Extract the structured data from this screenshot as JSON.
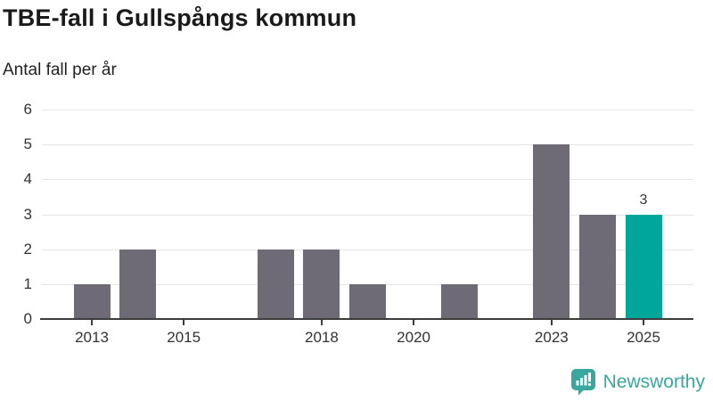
{
  "chart_data": {
    "type": "bar",
    "title": "TBE-fall i Gullspångs kommun",
    "subtitle": "Antal fall per år",
    "categories": [
      2013,
      2014,
      2015,
      2016,
      2017,
      2018,
      2019,
      2020,
      2021,
      2022,
      2023,
      2024,
      2025
    ],
    "values": [
      1,
      2,
      0,
      0,
      2,
      2,
      1,
      0,
      1,
      0,
      5,
      3,
      3
    ],
    "ylim": [
      0,
      6
    ],
    "yticks": [
      0,
      1,
      2,
      3,
      4,
      5,
      6
    ],
    "xticks_shown": [
      2013,
      2015,
      2018,
      2020,
      2023,
      2025
    ],
    "highlight_category": 2025,
    "bar_label": {
      "category": 2025,
      "text": "3"
    },
    "grid": "horizontal",
    "legend": "none",
    "colors": {
      "bar": "#6e6a76",
      "highlight": "#00a69a",
      "grid": "#e6e6e6",
      "axis": "#3d3d3d"
    }
  },
  "footer": {
    "brand": "Newsworthy",
    "brand_color": "#3aa79e"
  }
}
